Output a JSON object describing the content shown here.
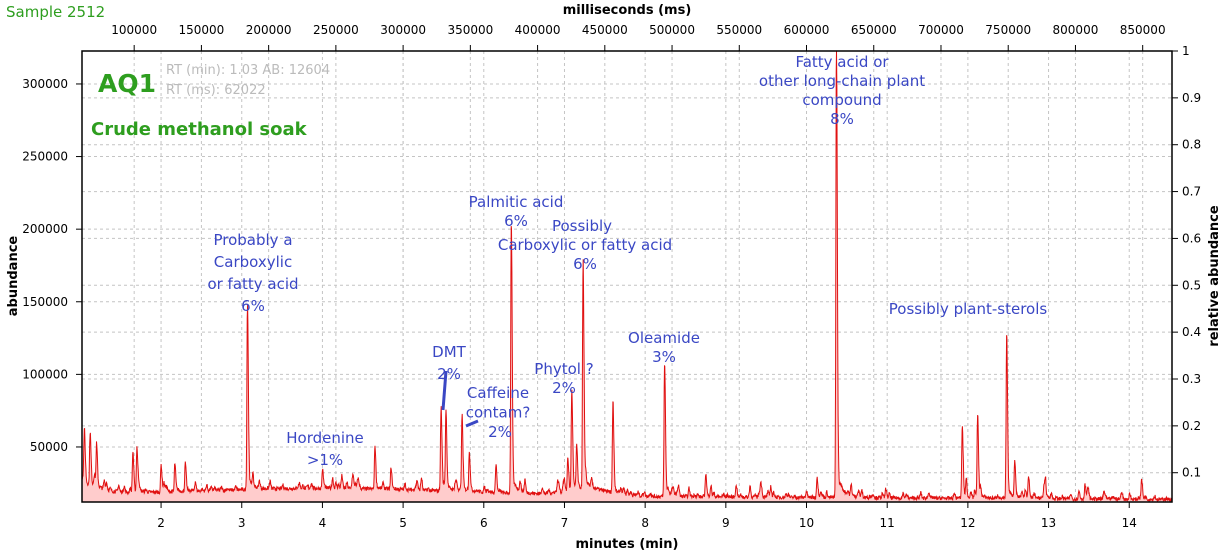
{
  "sample_label": "Sample 2512",
  "colors": {
    "trace": "#e01010",
    "fill": "#ffcccc",
    "annotation": "#3a47c4",
    "title_green": "#2e9e1f",
    "info_gray": "#bbbbbb"
  },
  "chart_data": {
    "type": "line",
    "title": "AQ1",
    "subtitle": "Crude methanol soak",
    "info_lines": [
      "RT (min): 1.03 AB: 12604",
      "RT (ms): 62022"
    ],
    "xlabel": "minutes (min)",
    "x2label": "milliseconds (ms)",
    "ylabel": "abundance",
    "y2label": "relative abundance",
    "xlim": [
      1.02,
      14.53
    ],
    "ylim": [
      12100,
      322700
    ],
    "y2lim": [
      0.0375,
      1
    ],
    "xticks": [
      2,
      3,
      4,
      5,
      6,
      7,
      8,
      9,
      10,
      11,
      12,
      13,
      14
    ],
    "x2ticks": [
      100000,
      150000,
      200000,
      250000,
      300000,
      350000,
      400000,
      450000,
      500000,
      550000,
      600000,
      650000,
      700000,
      750000,
      800000,
      850000
    ],
    "yticks": [
      50000,
      100000,
      150000,
      200000,
      250000,
      300000
    ],
    "y2ticks": [
      0.1,
      0.2,
      0.3,
      0.4,
      0.5,
      0.6,
      0.7,
      0.8,
      0.9,
      1
    ],
    "grid": true,
    "fill_under_trace": true,
    "peaks": [
      {
        "rt": 1.05,
        "abundance": 57000
      },
      {
        "rt": 1.12,
        "abundance": 59000
      },
      {
        "rt": 1.2,
        "abundance": 50000
      },
      {
        "rt": 1.65,
        "abundance": 46000
      },
      {
        "rt": 1.7,
        "abundance": 48000
      },
      {
        "rt": 2.0,
        "abundance": 37000
      },
      {
        "rt": 2.17,
        "abundance": 38000
      },
      {
        "rt": 2.3,
        "abundance": 38000
      },
      {
        "rt": 3.07,
        "abundance": 142000
      },
      {
        "rt": 4.0,
        "abundance": 34000
      },
      {
        "rt": 4.65,
        "abundance": 50000
      },
      {
        "rt": 4.85,
        "abundance": 34000
      },
      {
        "rt": 5.47,
        "abundance": 70700
      },
      {
        "rt": 5.53,
        "abundance": 72700
      },
      {
        "rt": 5.73,
        "abundance": 69300
      },
      {
        "rt": 5.82,
        "abundance": 45000
      },
      {
        "rt": 6.15,
        "abundance": 37600
      },
      {
        "rt": 6.34,
        "abundance": 202000
      },
      {
        "rt": 7.04,
        "abundance": 42000
      },
      {
        "rt": 7.09,
        "abundance": 87000
      },
      {
        "rt": 7.15,
        "abundance": 49000
      },
      {
        "rt": 7.23,
        "abundance": 172600
      },
      {
        "rt": 7.6,
        "abundance": 81000
      },
      {
        "rt": 8.24,
        "abundance": 105000
      },
      {
        "rt": 8.75,
        "abundance": 31400
      },
      {
        "rt": 10.13,
        "abundance": 29000
      },
      {
        "rt": 10.37,
        "abundance": 322700
      },
      {
        "rt": 11.93,
        "abundance": 63000
      },
      {
        "rt": 12.12,
        "abundance": 69300
      },
      {
        "rt": 12.48,
        "abundance": 125800
      },
      {
        "rt": 12.58,
        "abundance": 39000
      },
      {
        "rt": 12.75,
        "abundance": 27000
      },
      {
        "rt": 13.45,
        "abundance": 24000
      },
      {
        "rt": 14.15,
        "abundance": 22000
      }
    ],
    "annotations": [
      {
        "lines": [
          "Probably a",
          "Carboxylic",
          "or fatty acid",
          "6%"
        ]
      },
      {
        "lines": [
          "Hordenine",
          ">1%"
        ]
      },
      {
        "lines": [
          "DMT",
          "2%"
        ]
      },
      {
        "lines": [
          "Caffeine",
          "contam?",
          "2%"
        ]
      },
      {
        "lines": [
          "Palmitic acid",
          "6%"
        ]
      },
      {
        "lines": [
          "Possibly",
          "Carboxylic or fatty acid",
          "6%"
        ]
      },
      {
        "lines": [
          "Phytol ?",
          "2%"
        ]
      },
      {
        "lines": [
          "Oleamide",
          "3%"
        ]
      },
      {
        "lines": [
          "Fatty acid or",
          "other long-chain plant",
          "compound",
          "8%"
        ]
      },
      {
        "lines": [
          "Possibly plant-sterols"
        ]
      }
    ]
  }
}
